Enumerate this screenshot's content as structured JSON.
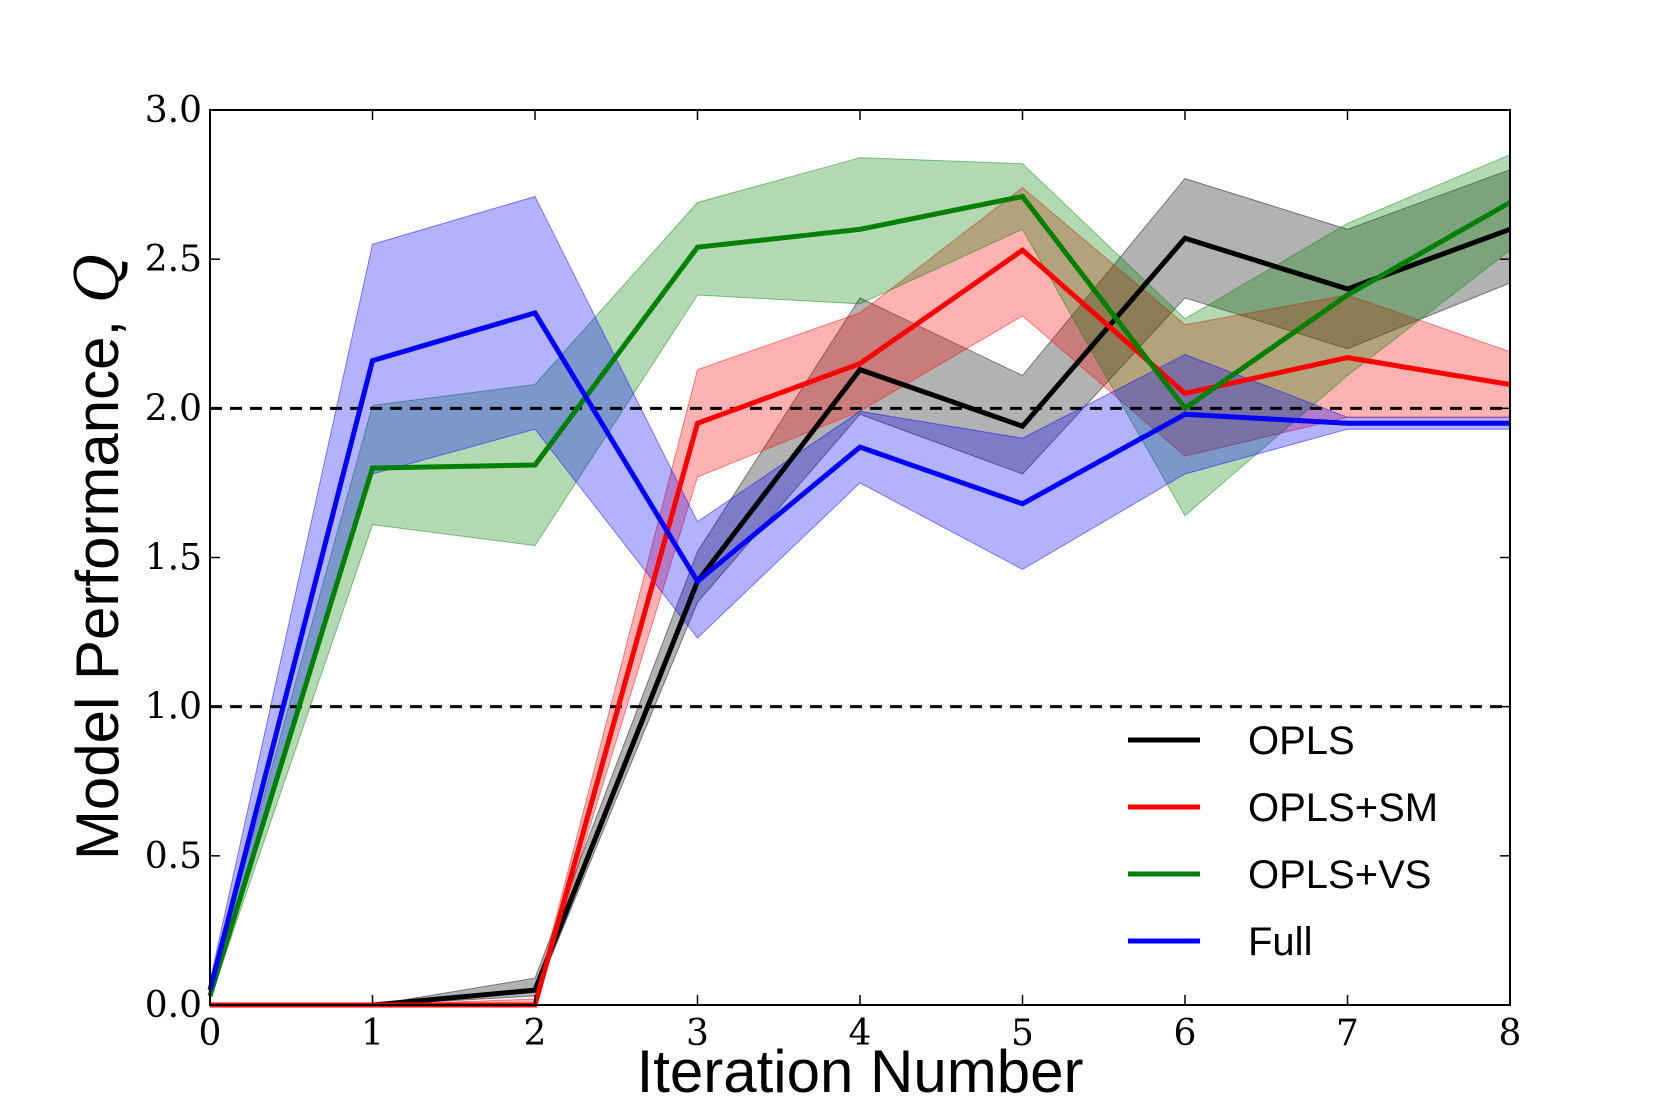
{
  "chart_data": {
    "type": "line",
    "title": "",
    "xlabel": "Iteration Number",
    "ylabel": "Model Performance, ",
    "ylabel_symbol": "Q",
    "xlim": [
      0,
      8
    ],
    "ylim": [
      0,
      3.0
    ],
    "xticks": [
      0,
      1,
      2,
      3,
      4,
      5,
      6,
      7,
      8
    ],
    "xtick_labels": [
      "0",
      "1",
      "2",
      "3",
      "4",
      "5",
      "6",
      "7",
      "8"
    ],
    "yticks": [
      0.0,
      0.5,
      1.0,
      1.5,
      2.0,
      2.5,
      3.0
    ],
    "ytick_labels": [
      "0.0",
      "0.5",
      "1.0",
      "1.5",
      "2.0",
      "2.5",
      "3.0"
    ],
    "reference_lines": [
      1.0,
      2.0
    ],
    "legend_position": "lower-right",
    "x": [
      0,
      1,
      2,
      3,
      4,
      5,
      6,
      7,
      8
    ],
    "series": [
      {
        "name": "OPLS",
        "color": "#000000",
        "values": [
          0.0,
          0.0,
          0.05,
          1.42,
          2.13,
          1.94,
          2.57,
          2.4,
          2.6
        ],
        "lower": [
          0.0,
          0.0,
          0.03,
          1.35,
          1.98,
          1.78,
          2.37,
          2.2,
          2.42
        ],
        "upper": [
          0.0,
          0.0,
          0.09,
          1.52,
          2.37,
          2.11,
          2.77,
          2.6,
          2.8
        ]
      },
      {
        "name": "OPLS+SM",
        "color": "#ff0000",
        "values": [
          0.0,
          0.0,
          0.0,
          1.95,
          2.15,
          2.53,
          2.05,
          2.17,
          2.08
        ],
        "lower": [
          0.0,
          0.0,
          0.0,
          1.77,
          1.99,
          2.31,
          1.84,
          1.97,
          1.97
        ],
        "upper": [
          0.0,
          0.0,
          0.02,
          2.13,
          2.32,
          2.74,
          2.28,
          2.38,
          2.19
        ]
      },
      {
        "name": "OPLS+VS",
        "color": "#008000",
        "values": [
          0.03,
          1.8,
          1.81,
          2.54,
          2.6,
          2.71,
          2.0,
          2.38,
          2.69
        ],
        "lower": [
          0.02,
          1.61,
          1.54,
          2.38,
          2.35,
          2.6,
          1.64,
          2.11,
          2.53
        ],
        "upper": [
          0.05,
          2.01,
          2.08,
          2.69,
          2.84,
          2.82,
          2.3,
          2.62,
          2.85
        ]
      },
      {
        "name": "Full",
        "color": "#0000ff",
        "values": [
          0.05,
          2.16,
          2.32,
          1.42,
          1.87,
          1.68,
          1.98,
          1.95,
          1.95
        ],
        "lower": [
          0.02,
          1.78,
          1.93,
          1.23,
          1.75,
          1.46,
          1.78,
          1.93,
          1.93
        ],
        "upper": [
          0.08,
          2.55,
          2.71,
          1.62,
          1.99,
          1.9,
          2.18,
          1.97,
          1.97
        ]
      }
    ]
  }
}
